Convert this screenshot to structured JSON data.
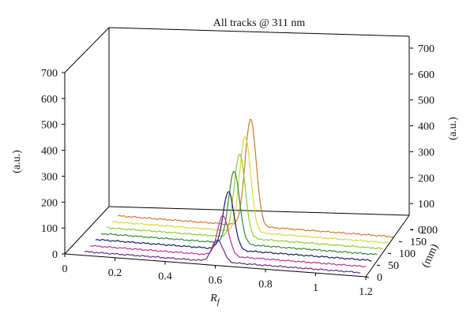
{
  "chart_data": {
    "type": "line",
    "title": "All tracks @ 311 nm",
    "xlabel": "R",
    "xlabel_sub": "f",
    "ylabel_left": "(a.u.)",
    "ylabel_right": "(a.u.)",
    "zlabel": "(mm)",
    "x_ticks": [
      "0",
      "0.2",
      "0.4",
      "0.6",
      "0.8",
      "1",
      "1.2"
    ],
    "y_left_ticks": [
      "0",
      "100",
      "200",
      "300",
      "400",
      "500",
      "600",
      "700"
    ],
    "y_right_ticks": [
      "0",
      "100",
      "200",
      "300",
      "400",
      "500",
      "600",
      "700"
    ],
    "z_ticks": [
      "0",
      "50",
      "100",
      "150",
      "200"
    ],
    "xlim": [
      0,
      1.2
    ],
    "ylim": [
      0,
      700
    ],
    "zlim": [
      0,
      200
    ],
    "grid": false,
    "legend": "none",
    "peak_rf": 0.6,
    "series": [
      {
        "z": 10,
        "color": "#6a2a8a",
        "values": {
          "baseline": 5,
          "peak": 90
        }
      },
      {
        "z": 35,
        "color": "#c0309a",
        "values": {
          "baseline": 5,
          "peak": 160
        }
      },
      {
        "z": 60,
        "color": "#1a1a6a",
        "values": {
          "baseline": 6,
          "peak": 230
        }
      },
      {
        "z": 85,
        "color": "#2f8a3a",
        "values": {
          "baseline": 6,
          "peak": 285
        }
      },
      {
        "z": 110,
        "color": "#8ccf2a",
        "values": {
          "baseline": 6,
          "peak": 330
        }
      },
      {
        "z": 135,
        "color": "#d8d840",
        "values": {
          "baseline": 6,
          "peak": 375
        }
      },
      {
        "z": 160,
        "color": "#d07a30",
        "values": {
          "baseline": 6,
          "peak": 420
        }
      }
    ]
  }
}
